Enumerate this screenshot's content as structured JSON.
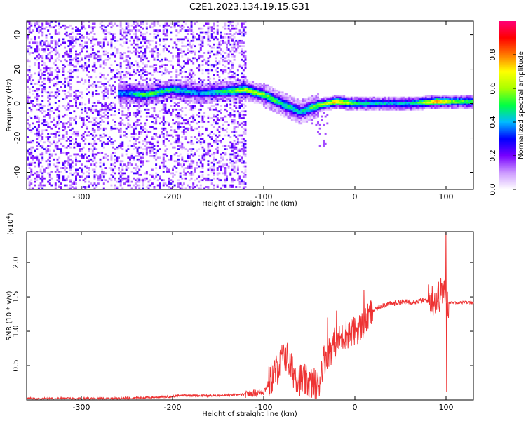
{
  "title": "C2E1.2023.134.19.15.G31",
  "chart_data": [
    {
      "type": "heatmap",
      "xlabel": "Height of straight line (km)",
      "ylabel": "Frequency (Hz)",
      "xlim": [
        -360,
        130
      ],
      "ylim": [
        -50,
        48
      ],
      "xticks": [
        -300,
        -200,
        -100,
        0,
        100
      ],
      "yticks": [
        -40,
        -20,
        0,
        20,
        40
      ],
      "colorbar": {
        "label": "Normalized spectral amplitude",
        "range": [
          0,
          1
        ],
        "ticks": [
          "0.0",
          "0.2",
          "0.4",
          "0.6",
          "0.8"
        ],
        "colors": [
          "#ffffff",
          "#cc99ff",
          "#7700ff",
          "#0000ff",
          "#00bbff",
          "#00ff44",
          "#aaff00",
          "#ffff00",
          "#ff7700",
          "#ff0000",
          "#ff0077"
        ]
      },
      "noise_region_x": [
        -360,
        -120
      ],
      "ridge": {
        "x": [
          -250,
          -230,
          -200,
          -170,
          -140,
          -120,
          -100,
          -80,
          -60,
          -40,
          -20,
          0,
          30,
          60,
          90,
          110,
          130
        ],
        "freq": [
          6,
          5,
          8,
          6,
          7,
          8,
          5,
          0,
          -5,
          -1,
          1,
          0,
          0,
          0,
          1,
          1,
          1
        ],
        "amplitude": [
          0.3,
          0.45,
          0.4,
          0.3,
          0.45,
          0.55,
          0.5,
          0.4,
          0.35,
          0.5,
          0.7,
          0.45,
          0.35,
          0.35,
          0.7,
          0.5,
          0.45
        ]
      }
    },
    {
      "type": "line",
      "xlabel": "Height of straight line (km)",
      "ylabel": "SNR (10 * v/v)",
      "y_multiplier_label": "(x10",
      "y_multiplier_exp": "4",
      "xlim": [
        -360,
        130
      ],
      "ylim": [
        0,
        2.45
      ],
      "xticks": [
        -300,
        -200,
        -100,
        0,
        100
      ],
      "yticks": [
        "0.5",
        "1.0",
        "1.5",
        "2.0"
      ],
      "color": "#ee3333",
      "x": [
        -360,
        -320,
        -280,
        -240,
        -200,
        -190,
        -160,
        -120,
        -100,
        -90,
        -80,
        -75,
        -70,
        -60,
        -50,
        -40,
        -35,
        -30,
        -20,
        -10,
        0,
        10,
        20,
        30,
        50,
        70,
        80,
        90,
        95,
        98,
        100,
        102,
        105,
        110,
        130
      ],
      "values": [
        0.02,
        0.02,
        0.02,
        0.03,
        0.05,
        0.07,
        0.06,
        0.08,
        0.12,
        0.35,
        0.55,
        0.65,
        0.45,
        0.3,
        0.25,
        0.2,
        0.55,
        0.7,
        0.85,
        0.95,
        1.0,
        1.1,
        1.3,
        1.38,
        1.42,
        1.44,
        1.45,
        1.48,
        1.55,
        1.6,
        1.35,
        1.42,
        1.42,
        1.42,
        1.42
      ],
      "spikes": [
        {
          "x": -80,
          "v": 0.8
        },
        {
          "x": -30,
          "v": 1.2
        },
        {
          "x": -20,
          "v": 1.3
        },
        {
          "x": 10,
          "v": 1.6
        },
        {
          "x": 95,
          "v": 1.7
        },
        {
          "x": 100,
          "v": 2.45
        },
        {
          "x": 100.5,
          "v": 0.12
        }
      ]
    }
  ]
}
